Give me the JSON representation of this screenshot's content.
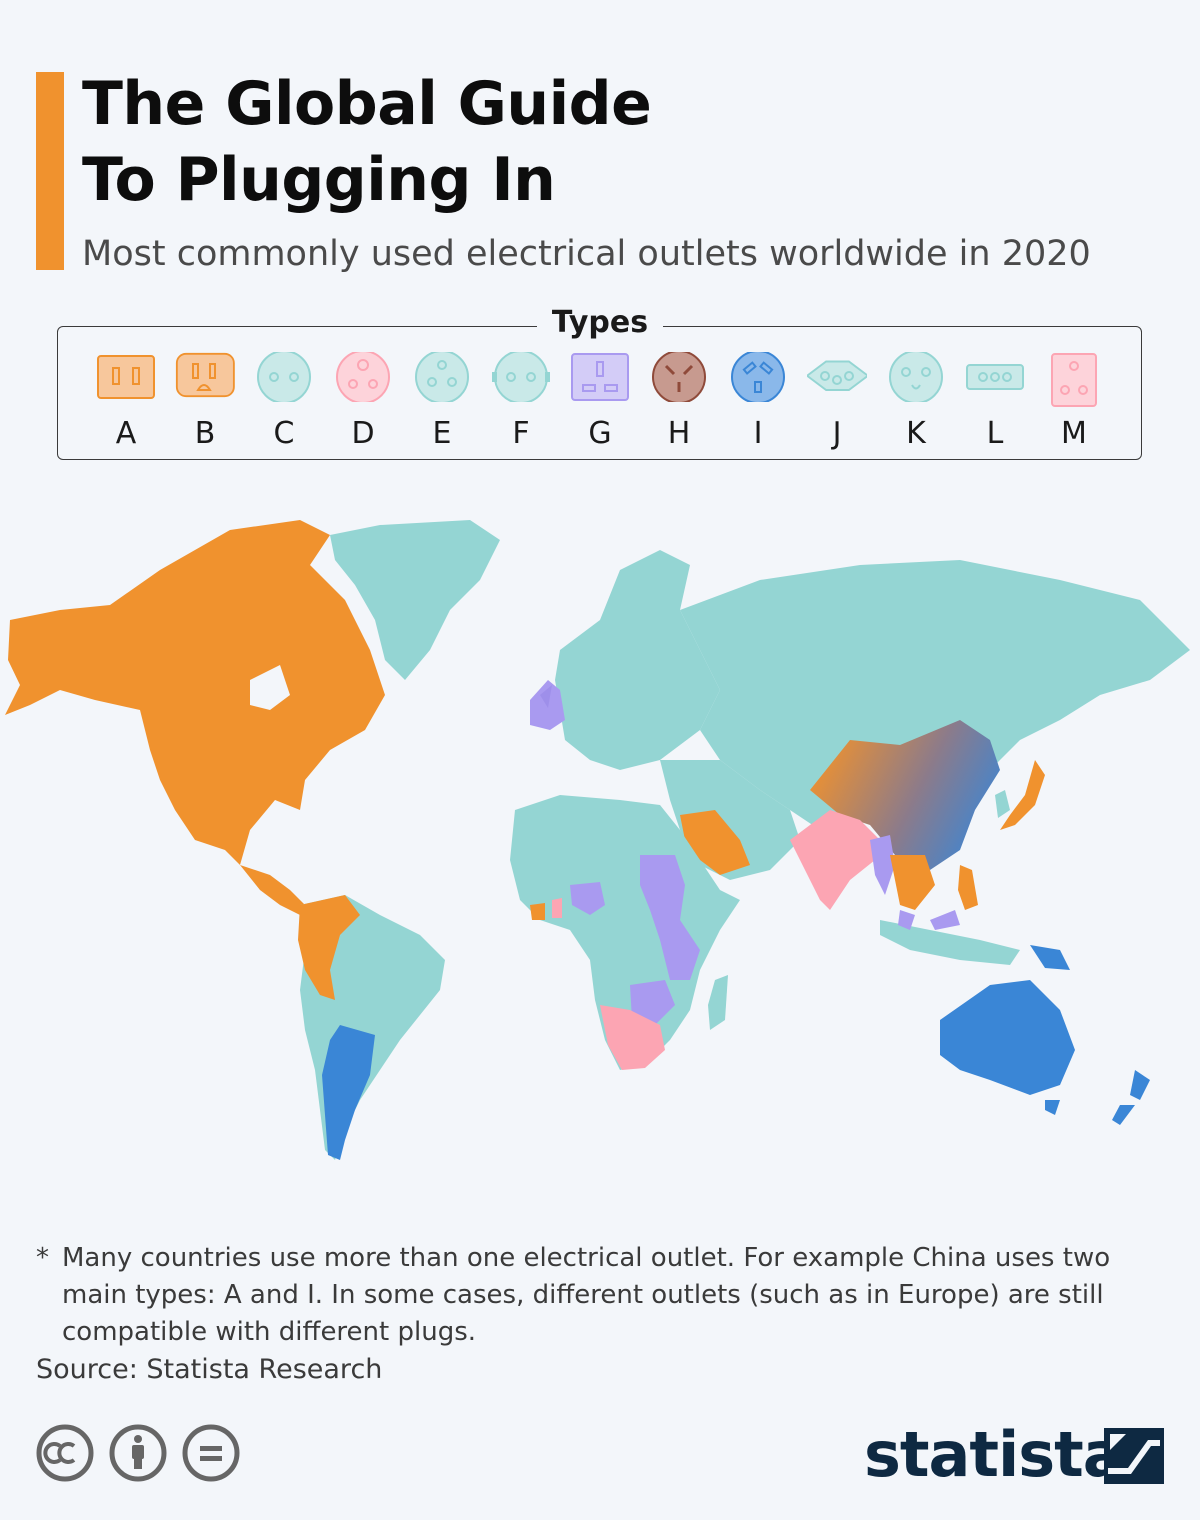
{
  "header": {
    "title_line1": "The Global Guide",
    "title_line2": "To Plugging In",
    "subtitle": "Most commonly used electrical outlets worldwide in 2020"
  },
  "legend": {
    "title": "Types",
    "items": [
      {
        "label": "A",
        "color": "#f0922e"
      },
      {
        "label": "B",
        "color": "#f0922e"
      },
      {
        "label": "C",
        "color": "#94d5d3"
      },
      {
        "label": "D",
        "color": "#fca5b3"
      },
      {
        "label": "E",
        "color": "#94d5d3"
      },
      {
        "label": "F",
        "color": "#94d5d3"
      },
      {
        "label": "G",
        "color": "#a99af0"
      },
      {
        "label": "H",
        "color": "#8f4a3a"
      },
      {
        "label": "I",
        "color": "#3a86d6"
      },
      {
        "label": "J",
        "color": "#94d5d3"
      },
      {
        "label": "K",
        "color": "#94d5d3"
      },
      {
        "label": "L",
        "color": "#94d5d3"
      },
      {
        "label": "M",
        "color": "#fca5b3"
      }
    ]
  },
  "map": {
    "colors": {
      "type_a_b": "#f0922e",
      "type_c_e_f": "#94d5d3",
      "type_d_m": "#fca5b3",
      "type_g": "#a99af0",
      "type_i": "#3a86d6",
      "ocean": "#f3f6fa"
    }
  },
  "footnote": {
    "star": "*",
    "text": "Many countries use more than one electrical outlet. For example China uses two main types: A and I. In some cases, different outlets (such as in Europe) are still compatible with different plugs."
  },
  "source": "Source: Statista Research",
  "brand": {
    "name": "statista",
    "color": "#0e2942"
  },
  "license_icons": [
    "cc-icon",
    "attribution-icon",
    "no-derivatives-icon"
  ]
}
